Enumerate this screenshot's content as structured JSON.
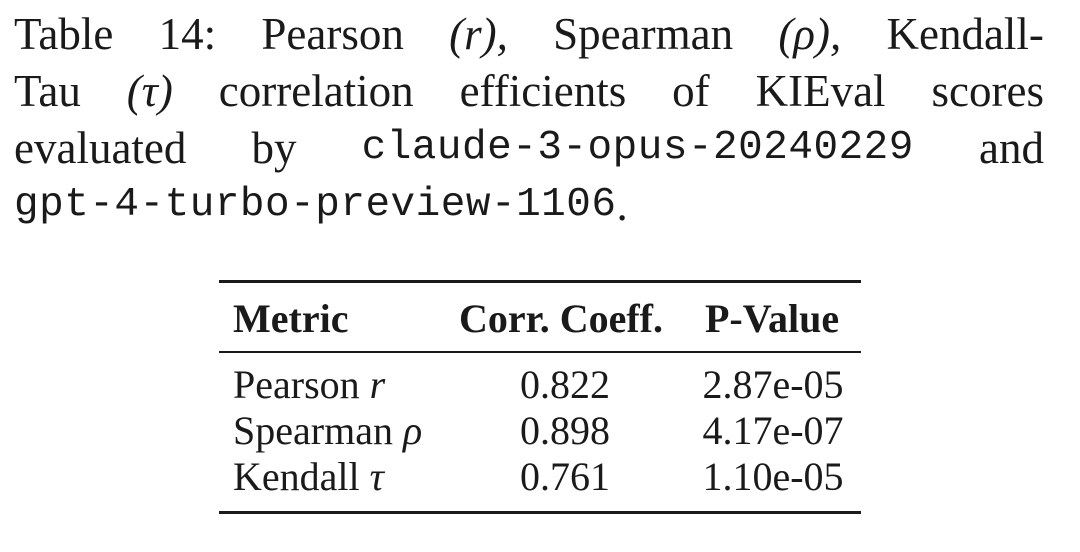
{
  "caption": {
    "line1": [
      "Table",
      "14:",
      "Pearson",
      "(r),",
      "Spearman",
      "(ρ),",
      "Kendall-"
    ],
    "line2": [
      "Tau",
      "(τ)",
      "correlation",
      "efficients",
      "of",
      "KIEval",
      "scores"
    ],
    "line3_prefix": [
      "evaluated",
      "by"
    ],
    "model_a": "claude-3-opus-20240229",
    "line3_suffix": "and",
    "model_b": "gpt-4-turbo-preview-1106",
    "line4_suffix": "."
  },
  "table": {
    "headers": [
      "Metric",
      "Corr. Coeff.",
      "P-Value"
    ],
    "rows": [
      {
        "metric": "Pearson",
        "symbol": "r",
        "coeff": "0.822",
        "pvalue": "2.87e-05"
      },
      {
        "metric": "Spearman",
        "symbol": "ρ",
        "coeff": "0.898",
        "pvalue": "4.17e-07"
      },
      {
        "metric": "Kendall",
        "symbol": "τ",
        "coeff": "0.761",
        "pvalue": "1.10e-05"
      }
    ]
  }
}
